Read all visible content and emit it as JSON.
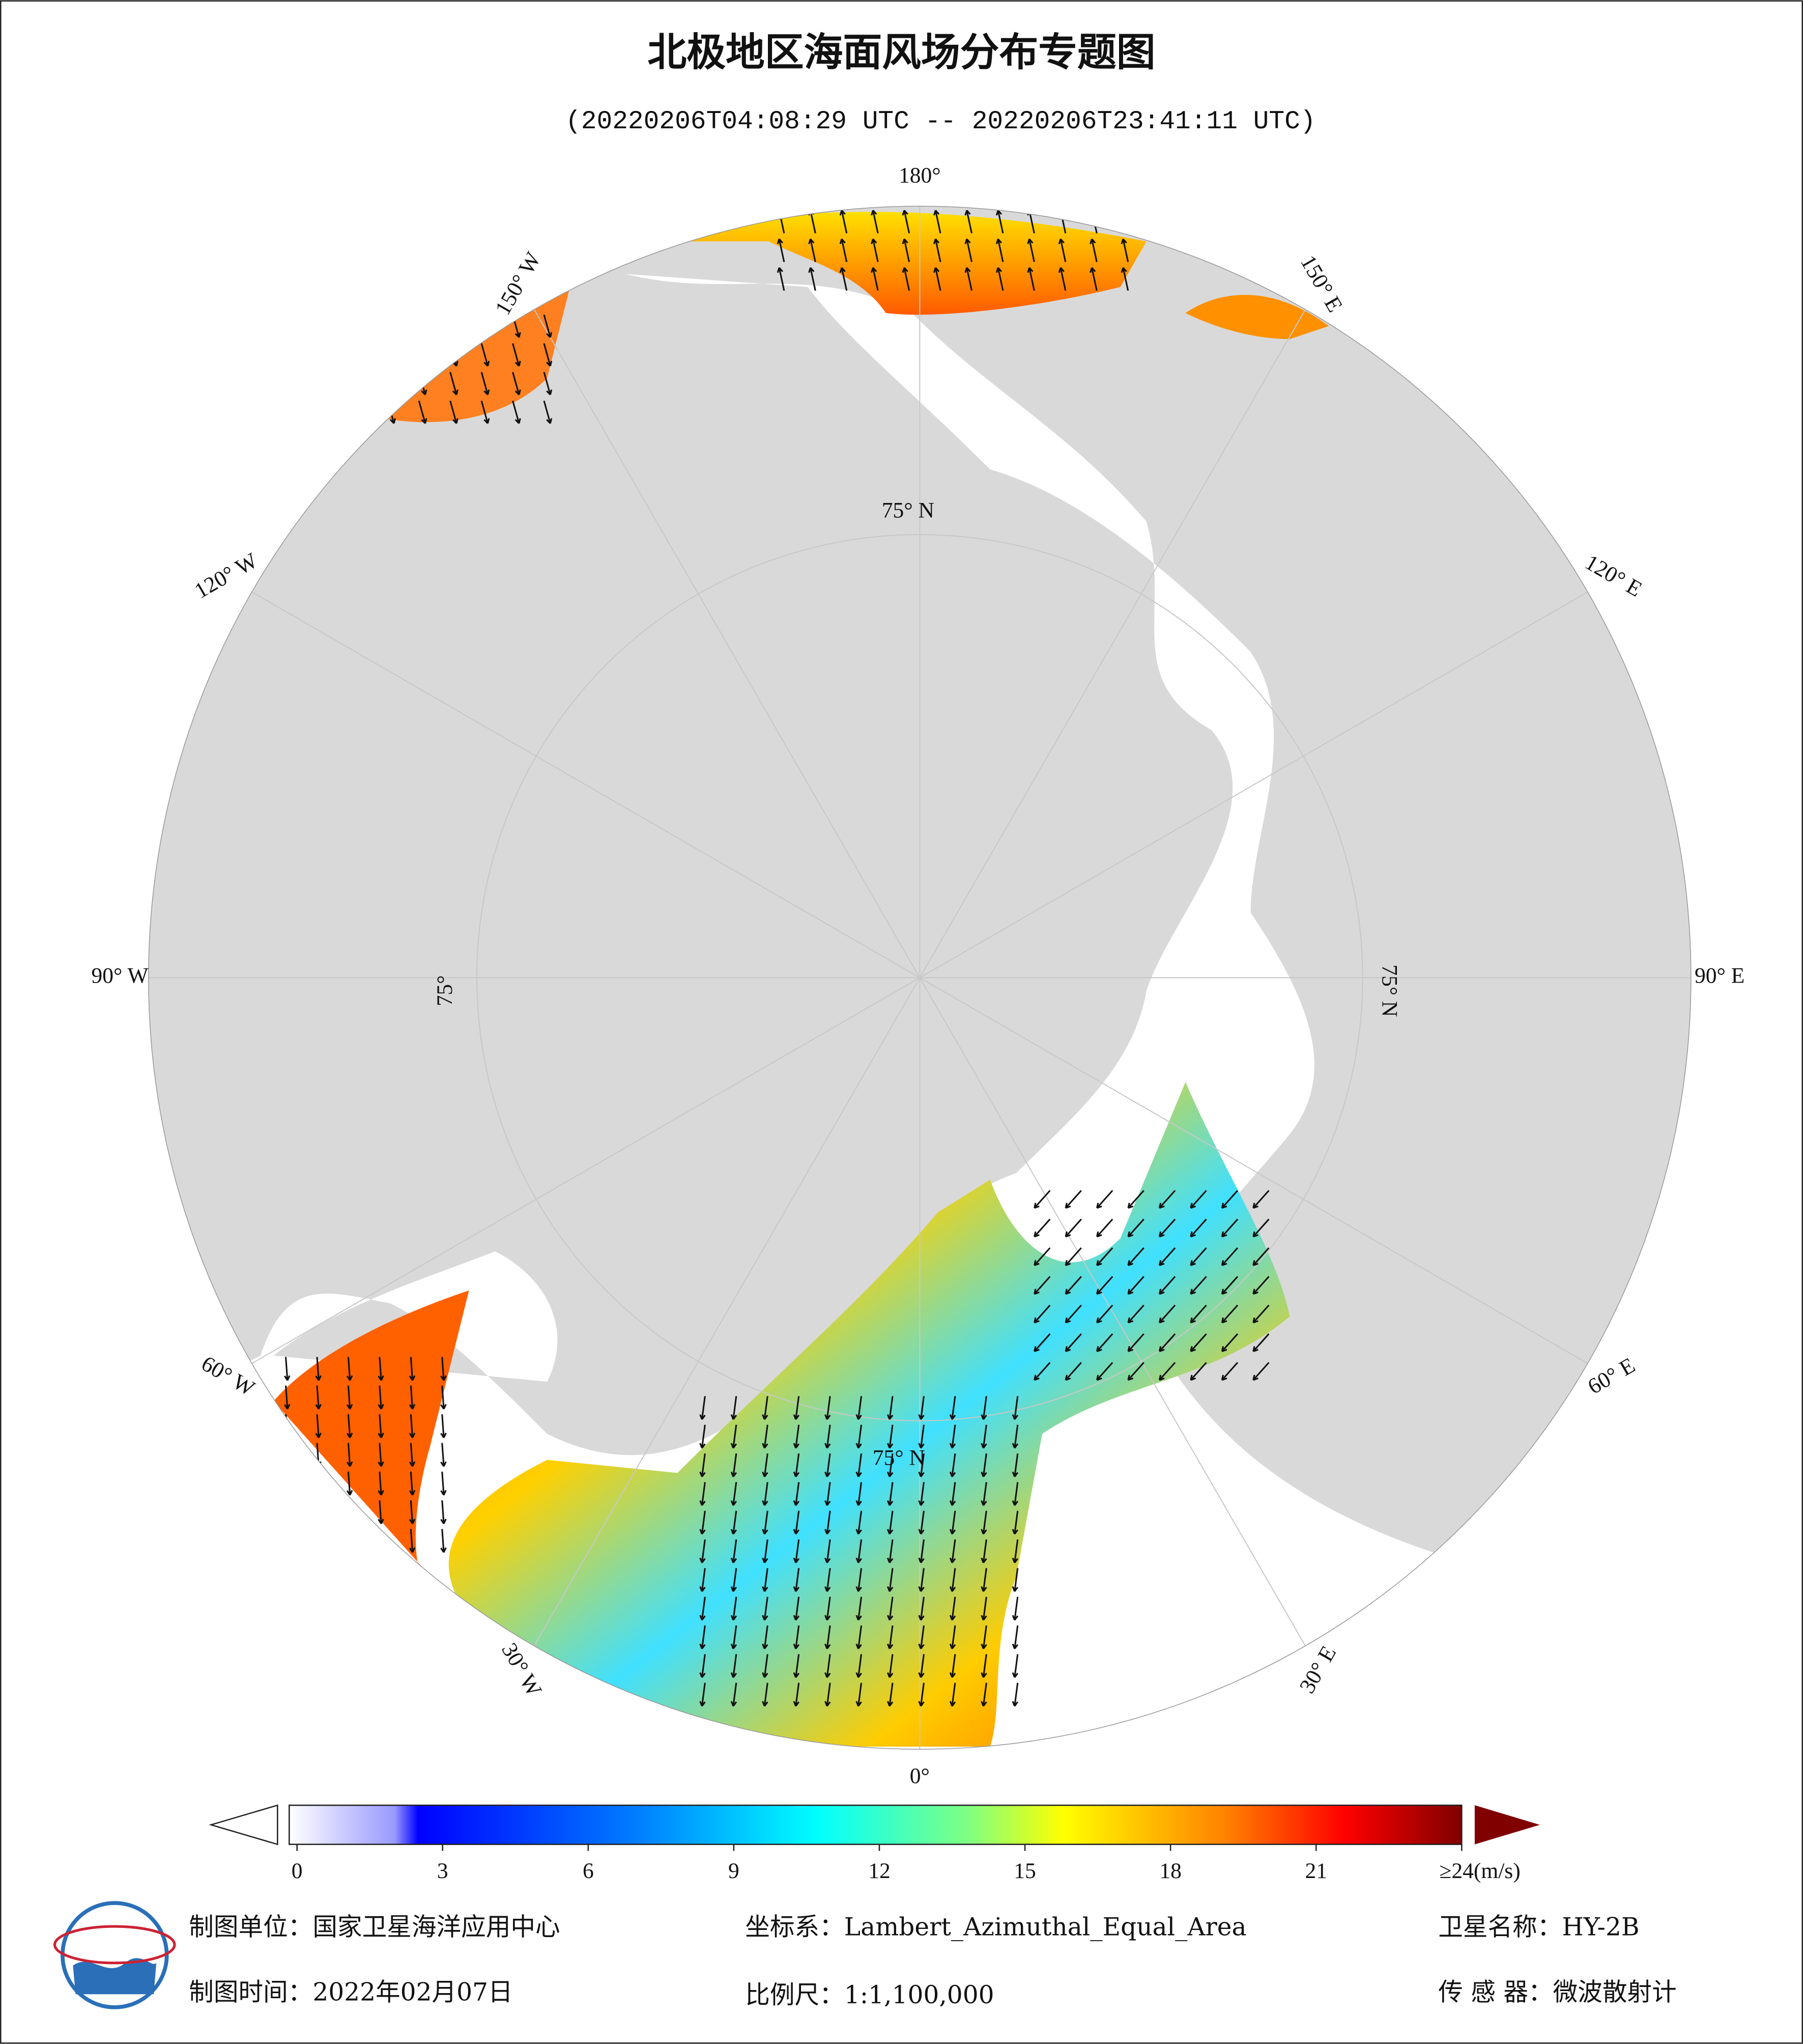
{
  "title": "北极地区海面风场分布专题图",
  "subtitle": "(20220206T04:08:29 UTC -- 20220206T23:41:11 UTC)",
  "map": {
    "longitude_labels": [
      "180°",
      "150° E",
      "120° E",
      "90° E",
      "60° E",
      "30° E",
      "0°",
      "30° W",
      "60° W",
      "90° W",
      "120° W",
      "150° W"
    ],
    "latitude_labels": [
      "75° N",
      "75° N",
      "75° N",
      "75°"
    ]
  },
  "colorbar": {
    "range": [
      0,
      24
    ],
    "ticks": [
      0,
      3,
      6,
      9,
      12,
      15,
      18,
      21,
      {
        "value": 24,
        "label": "≥24(m/s)"
      }
    ]
  },
  "footer": {
    "unit": "制图单位：国家卫星海洋应用中心",
    "coordinate_system": "坐标系：Lambert_Azimuthal_Equal_Area",
    "satellite": "卫星名称：HY-2B",
    "date": "制图时间：2022年02月07日",
    "scale": "比例尺：1:1,100,000",
    "sensor": "传 感 器：微波散射计"
  }
}
